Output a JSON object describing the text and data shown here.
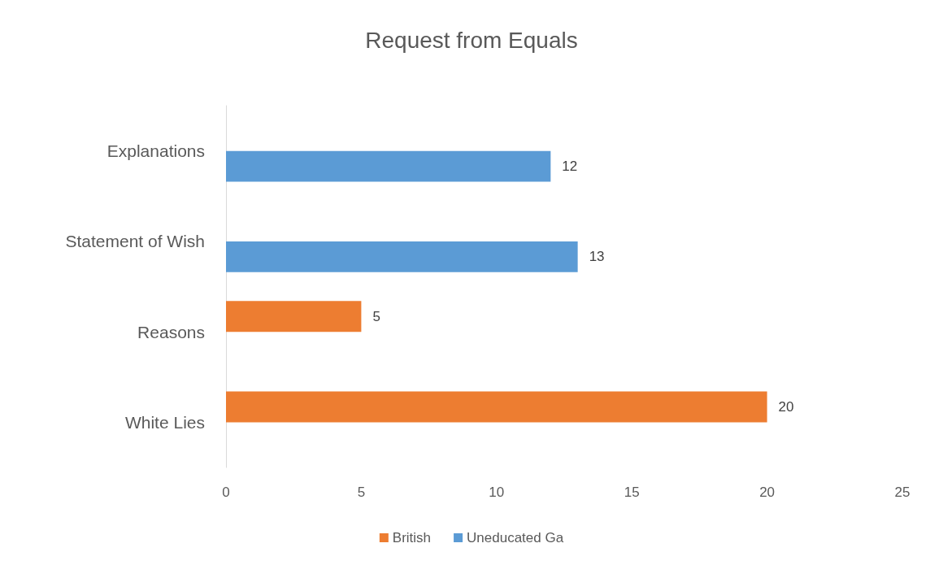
{
  "chart_data": {
    "type": "bar",
    "orientation": "horizontal",
    "title": "Request from Equals",
    "categories": [
      "Explanations",
      "Statement of Wish",
      "Reasons",
      "White Lies"
    ],
    "series": [
      {
        "name": "British",
        "color": "#ed7d31",
        "values": [
          null,
          null,
          5,
          20
        ]
      },
      {
        "name": "Uneducated Ga",
        "color": "#5b9bd5",
        "values": [
          12,
          13,
          null,
          null
        ]
      }
    ],
    "xlim": [
      0,
      25
    ],
    "xticks": [
      0,
      5,
      10,
      15,
      20,
      25
    ],
    "grid": false,
    "legend": "bottom",
    "data_labels": true
  }
}
